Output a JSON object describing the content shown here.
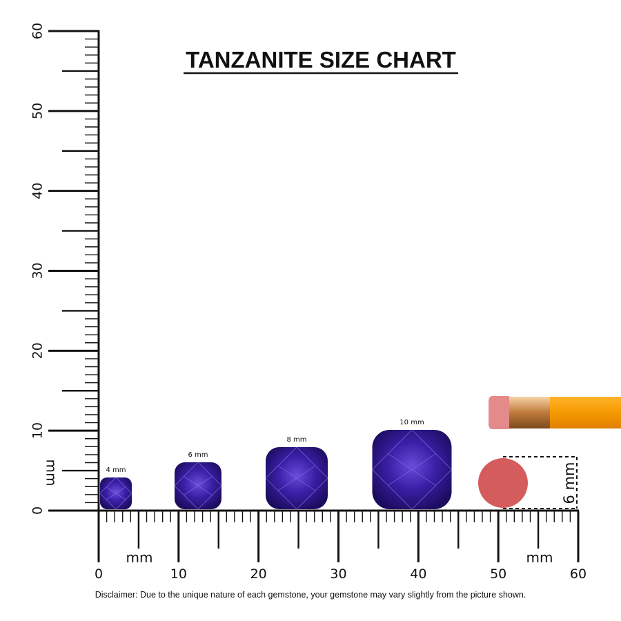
{
  "header": {
    "title": "TANZANITE SIZE CHART"
  },
  "ruler": {
    "vertical_labels": [
      0,
      10,
      20,
      30,
      40,
      50,
      60
    ],
    "vertical_unit": "mm",
    "horizontal_labels": [
      0,
      10,
      20,
      30,
      40,
      50,
      60
    ],
    "horizontal_units": [
      "mm",
      "mm"
    ]
  },
  "gems": [
    {
      "label": "4 mm"
    },
    {
      "label": "6 mm"
    },
    {
      "label": "8 mm"
    },
    {
      "label": "10 mm"
    }
  ],
  "pencil_eraser": {
    "label": "6 mm"
  },
  "footer": {
    "disclaimer": "Disclaimer: Due to the unique nature of each gemstone, your gemstone may vary slightly from the picture shown."
  }
}
